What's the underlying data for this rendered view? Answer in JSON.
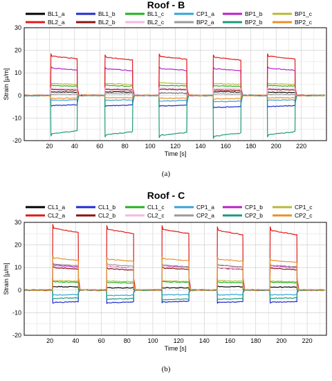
{
  "chart_data": [
    {
      "type": "line",
      "title": "Roof - B",
      "xlabel": "Time [s]",
      "ylabel": "Strain [µ/m]",
      "xlim": [
        0,
        240
      ],
      "ylim": [
        -20,
        30
      ],
      "xticks": [
        "20",
        "40",
        "60",
        "80",
        "100",
        "120",
        "140",
        "160",
        "180",
        "200",
        "220"
      ],
      "yticks": [
        "30",
        "20",
        "10",
        "0",
        "-10",
        "-20"
      ],
      "caption": "(a)",
      "grid": true,
      "legend": "top",
      "windows": [
        [
          21,
          42
        ],
        [
          64,
          86
        ],
        [
          107,
          129
        ],
        [
          150,
          172
        ],
        [
          193,
          215
        ]
      ],
      "series": [
        {
          "name": "BL1_a",
          "color": "#000000",
          "values": [
            1.5,
            1.5,
            1.0,
            1.6,
            1.3
          ]
        },
        {
          "name": "BL1_b",
          "color": "#1f2bd0",
          "values": [
            -4.2,
            -4.3,
            -4.4,
            -5.0,
            -4.6
          ]
        },
        {
          "name": "BL1_c",
          "color": "#1fb21f",
          "values": [
            4.2,
            4.2,
            4.3,
            4.1,
            4.2
          ]
        },
        {
          "name": "CP1_a",
          "color": "#33a3d6",
          "values": [
            -2.0,
            -2.0,
            -2.3,
            -2.6,
            -2.0
          ]
        },
        {
          "name": "BP1_b",
          "color": "#b81fc8",
          "values": [
            11.5,
            11.2,
            11.3,
            11.2,
            11.4
          ]
        },
        {
          "name": "BP1_c",
          "color": "#b8b83a",
          "values": [
            5.0,
            5.0,
            5.3,
            5.0,
            5.0
          ]
        },
        {
          "name": "BL2_a",
          "color": "#e01a1a",
          "values": [
            16.5,
            16.0,
            16.4,
            16.0,
            16.5
          ]
        },
        {
          "name": "BL2_b",
          "color": "#8b1212",
          "values": [
            2.5,
            2.5,
            2.6,
            2.3,
            2.5
          ]
        },
        {
          "name": "BL2_c",
          "color": "#f5b8e0",
          "values": [
            3.0,
            3.0,
            3.1,
            3.0,
            3.0
          ]
        },
        {
          "name": "BP2_a",
          "color": "#9a9a9a",
          "values": [
            0.5,
            0.7,
            1.0,
            0.6,
            0.5
          ]
        },
        {
          "name": "BP2_b",
          "color": "#1a9a7a",
          "values": [
            -16.0,
            -16.4,
            -16.7,
            -17.0,
            -16.4
          ]
        },
        {
          "name": "BP2_c",
          "color": "#e8902a",
          "values": [
            -1.2,
            -1.0,
            -1.2,
            -1.4,
            -1.0
          ]
        }
      ]
    },
    {
      "type": "line",
      "title": "Roof - C",
      "xlabel": "Time [s]",
      "ylabel": "Strain [µ/m]",
      "xlim": [
        0,
        235
      ],
      "ylim": [
        -20,
        30
      ],
      "xticks": [
        "20",
        "40",
        "60",
        "80",
        "100",
        "120",
        "140",
        "160",
        "180",
        "200",
        "220"
      ],
      "yticks": [
        "30",
        "20",
        "10",
        "0",
        "-10",
        "-20"
      ],
      "caption": "(b)",
      "grid": true,
      "legend": "top",
      "windows": [
        [
          22,
          42
        ],
        [
          64,
          85
        ],
        [
          107,
          128
        ],
        [
          150,
          170
        ],
        [
          191,
          212
        ]
      ],
      "series": [
        {
          "name": "CL1_a",
          "color": "#000000",
          "values": [
            1.5,
            1.0,
            1.0,
            1.5,
            1.3
          ]
        },
        {
          "name": "CL1_b",
          "color": "#1f2bd0",
          "values": [
            -5.2,
            -5.3,
            -5.0,
            -5.2,
            -5.1
          ]
        },
        {
          "name": "CL1_c",
          "color": "#1fb21f",
          "values": [
            3.5,
            3.2,
            3.5,
            3.3,
            3.3
          ]
        },
        {
          "name": "CP1_a",
          "color": "#33a3d6",
          "values": [
            -2.0,
            -2.3,
            -2.0,
            -2.0,
            -2.0
          ]
        },
        {
          "name": "CP1_b",
          "color": "#b81fc8",
          "values": [
            10.5,
            10.0,
            10.2,
            10.4,
            10.3
          ]
        },
        {
          "name": "CP1_c",
          "color": "#b8b83a",
          "values": [
            4.0,
            3.8,
            3.9,
            4.0,
            3.8
          ]
        },
        {
          "name": "CL2_a",
          "color": "#e01a1a",
          "values": [
            26.0,
            25.5,
            25.5,
            25.0,
            25.0
          ]
        },
        {
          "name": "CL2_b",
          "color": "#8b1212",
          "values": [
            9.5,
            9.0,
            9.3,
            9.3,
            9.2
          ]
        },
        {
          "name": "CL2_c",
          "color": "#f5b8e0",
          "values": [
            10.0,
            10.0,
            10.0,
            9.5,
            9.8
          ]
        },
        {
          "name": "CP2_a",
          "color": "#9a9a9a",
          "values": [
            11.0,
            10.8,
            10.5,
            10.5,
            10.5
          ]
        },
        {
          "name": "CP2_b",
          "color": "#1a9a7a",
          "values": [
            -3.5,
            -3.8,
            -4.0,
            -3.8,
            -3.5
          ]
        },
        {
          "name": "CP2_c",
          "color": "#e8902a",
          "values": [
            13.5,
            13.0,
            13.2,
            13.0,
            12.5
          ]
        }
      ]
    }
  ]
}
